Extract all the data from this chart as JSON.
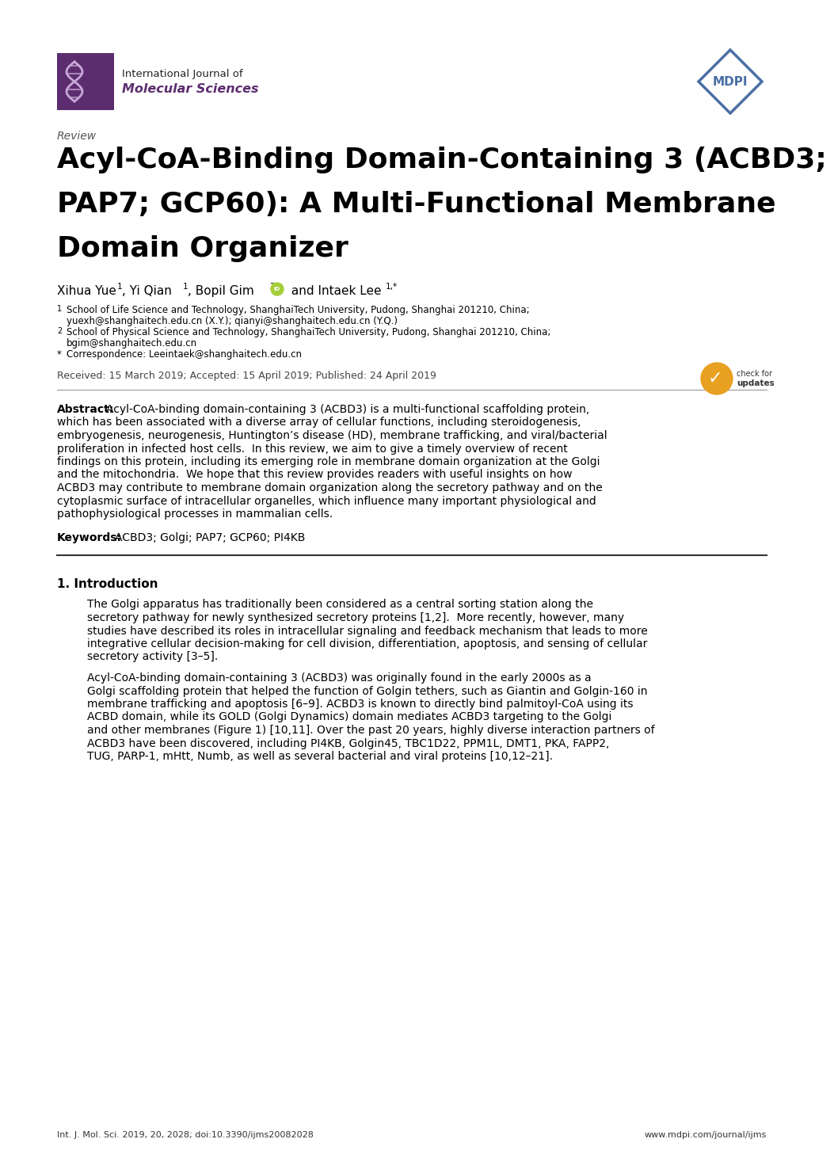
{
  "bg_color": "#ffffff",
  "text_color": "#000000",
  "review_label": "Review",
  "title_line1": "Acyl-CoA-Binding Domain-Containing 3 (ACBD3;",
  "title_line2": "PAP7; GCP60): A Multi-Functional Membrane",
  "title_line3": "Domain Organizer",
  "journal_name_line1": "International Journal of",
  "journal_name_line2": "Molecular Sciences",
  "journal_color": "#5c2d6e",
  "mdpi_color": "#4a6fa5",
  "affil1_line1": "School of Life Science and Technology, ShanghaiTech University, Pudong, Shanghai 201210, China;",
  "affil1_line2": "yuexh@shanghaitech.edu.cn (X.Y.); qianyi@shanghaitech.edu.cn (Y.Q.)",
  "affil2_line1": "School of Physical Science and Technology, ShanghaiTech University, Pudong, Shanghai 201210, China;",
  "affil2_line2": "bgim@shanghaitech.edu.cn",
  "affil3": "Correspondence: Leeintaek@shanghaitech.edu.cn",
  "received": "Received: 15 March 2019; Accepted: 15 April 2019; Published: 24 April 2019",
  "abstract_body_lines": [
    "Acyl-CoA-binding domain-containing 3 (ACBD3) is a multi-functional scaffolding protein,",
    "which has been associated with a diverse array of cellular functions, including steroidogenesis,",
    "embryogenesis, neurogenesis, Huntington’s disease (HD), membrane trafficking, and viral/bacterial",
    "proliferation in infected host cells.  In this review, we aim to give a timely overview of recent",
    "findings on this protein, including its emerging role in membrane domain organization at the Golgi",
    "and the mitochondria.  We hope that this review provides readers with useful insights on how",
    "ACBD3 may contribute to membrane domain organization along the secretory pathway and on the",
    "cytoplasmic surface of intracellular organelles, which influence many important physiological and",
    "pathophysiological processes in mammalian cells."
  ],
  "keywords_text": "ACBD3; Golgi; PAP7; GCP60; PI4KB",
  "section1_title": "1. Introduction",
  "intro_para1_lines": [
    "The Golgi apparatus has traditionally been considered as a central sorting station along the",
    "secretory pathway for newly synthesized secretory proteins [1,2].  More recently, however, many",
    "studies have described its roles in intracellular signaling and feedback mechanism that leads to more",
    "integrative cellular decision-making for cell division, differentiation, apoptosis, and sensing of cellular",
    "secretory activity [3–5]."
  ],
  "intro_para2_lines": [
    "Acyl-CoA-binding domain-containing 3 (ACBD3) was originally found in the early 2000s as a",
    "Golgi scaffolding protein that helped the function of Golgin tethers, such as Giantin and Golgin-160 in",
    "membrane trafficking and apoptosis [6–9]. ACBD3 is known to directly bind palmitoyl-CoA using its",
    "ACBD domain, while its GOLD (Golgi Dynamics) domain mediates ACBD3 targeting to the Golgi",
    "and other membranes (Figure 1) [10,11]. Over the past 20 years, highly diverse interaction partners of",
    "ACBD3 have been discovered, including PI4KB, Golgin45, TBC1D22, PPM1L, DMT1, PKA, FAPP2,",
    "TUG, PARP-1, mHtt, Numb, as well as several bacterial and viral proteins [10,12–21]."
  ],
  "footer_left": "Int. J. Mol. Sci. 2019, 20, 2028; doi:10.3390/ijms20082028",
  "footer_right": "www.mdpi.com/journal/ijms"
}
